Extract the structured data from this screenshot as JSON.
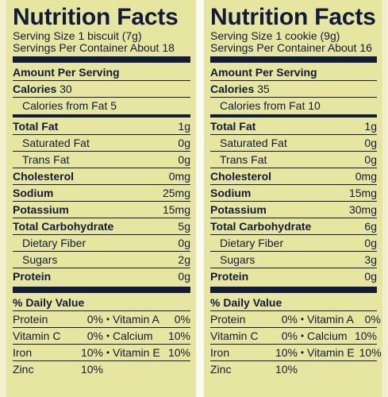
{
  "panels": [
    {
      "title": "Nutrition Facts",
      "serving_size": "Serving Size 1 biscuit (7g)",
      "servings_per_container": "Servings Per Container About 18",
      "amount_per_serving": "Amount Per Serving",
      "calories": {
        "label": "Calories",
        "value": "30"
      },
      "calories_from_fat": "Calories from Fat 5",
      "nutrients": [
        {
          "label": "Total Fat",
          "value": "1g"
        },
        {
          "label": "Saturated Fat",
          "value": "0g"
        },
        {
          "label": "Trans Fat",
          "value": "0g"
        },
        {
          "label": "Cholesterol",
          "value": "0mg"
        },
        {
          "label": "Sodium",
          "value": "25mg"
        },
        {
          "label": "Potassium",
          "value": "15mg"
        },
        {
          "label": "Total Carbohydrate",
          "value": "5g"
        },
        {
          "label": "Dietary Fiber",
          "value": "0g"
        },
        {
          "label": "Sugars",
          "value": "2g"
        },
        {
          "label": "Protein",
          "value": "0g"
        }
      ],
      "daily_value_header": "% Daily Value",
      "vitamins": [
        {
          "a": "Protein",
          "av": "0%",
          "dot": "•",
          "b": "Vitamin A",
          "bv": "0%"
        },
        {
          "a": "Vitamin C",
          "av": "0%",
          "dot": "•",
          "b": "Calcium",
          "bv": "10%"
        },
        {
          "a": "Iron",
          "av": "10%",
          "dot": "•",
          "b": "Vitamin E",
          "bv": "10%"
        },
        {
          "a": "Zinc",
          "av": "10%"
        }
      ]
    },
    {
      "title": "Nutrition Facts",
      "serving_size": "Serving Size  1 cookie (9g)",
      "servings_per_container": "Servings Per Container  About 16",
      "amount_per_serving": "Amount Per Serving",
      "calories": {
        "label": "Calories",
        "value": "35"
      },
      "calories_from_fat": "Calories from Fat 10",
      "nutrients": [
        {
          "label": "Total Fat",
          "value": "1g"
        },
        {
          "label": "Saturated Fat",
          "value": "0g"
        },
        {
          "label": "Trans Fat",
          "value": "0g"
        },
        {
          "label": "Cholesterol",
          "value": "0mg"
        },
        {
          "label": "Sodium",
          "value": "15mg"
        },
        {
          "label": "Potassium",
          "value": "30mg"
        },
        {
          "label": "Total Carbohydrate",
          "value": "6g"
        },
        {
          "label": "Dietary Fiber",
          "value": "0g"
        },
        {
          "label": "Sugars",
          "value": "3g"
        },
        {
          "label": "Protein",
          "value": "0g"
        }
      ],
      "daily_value_header": "% Daily Value",
      "vitamins": [
        {
          "a": "Protein",
          "av": "0%",
          "dot": "•",
          "b": "Vitamin A",
          "bv": "0%"
        },
        {
          "a": "Vitamin C",
          "av": "0%",
          "dot": "•",
          "b": "Calcium",
          "bv": "10%"
        },
        {
          "a": "Iron",
          "av": "10%",
          "dot": "•",
          "b": "Vitamin E",
          "bv": "10%"
        },
        {
          "a": "Zinc",
          "av": "10%"
        }
      ]
    }
  ]
}
